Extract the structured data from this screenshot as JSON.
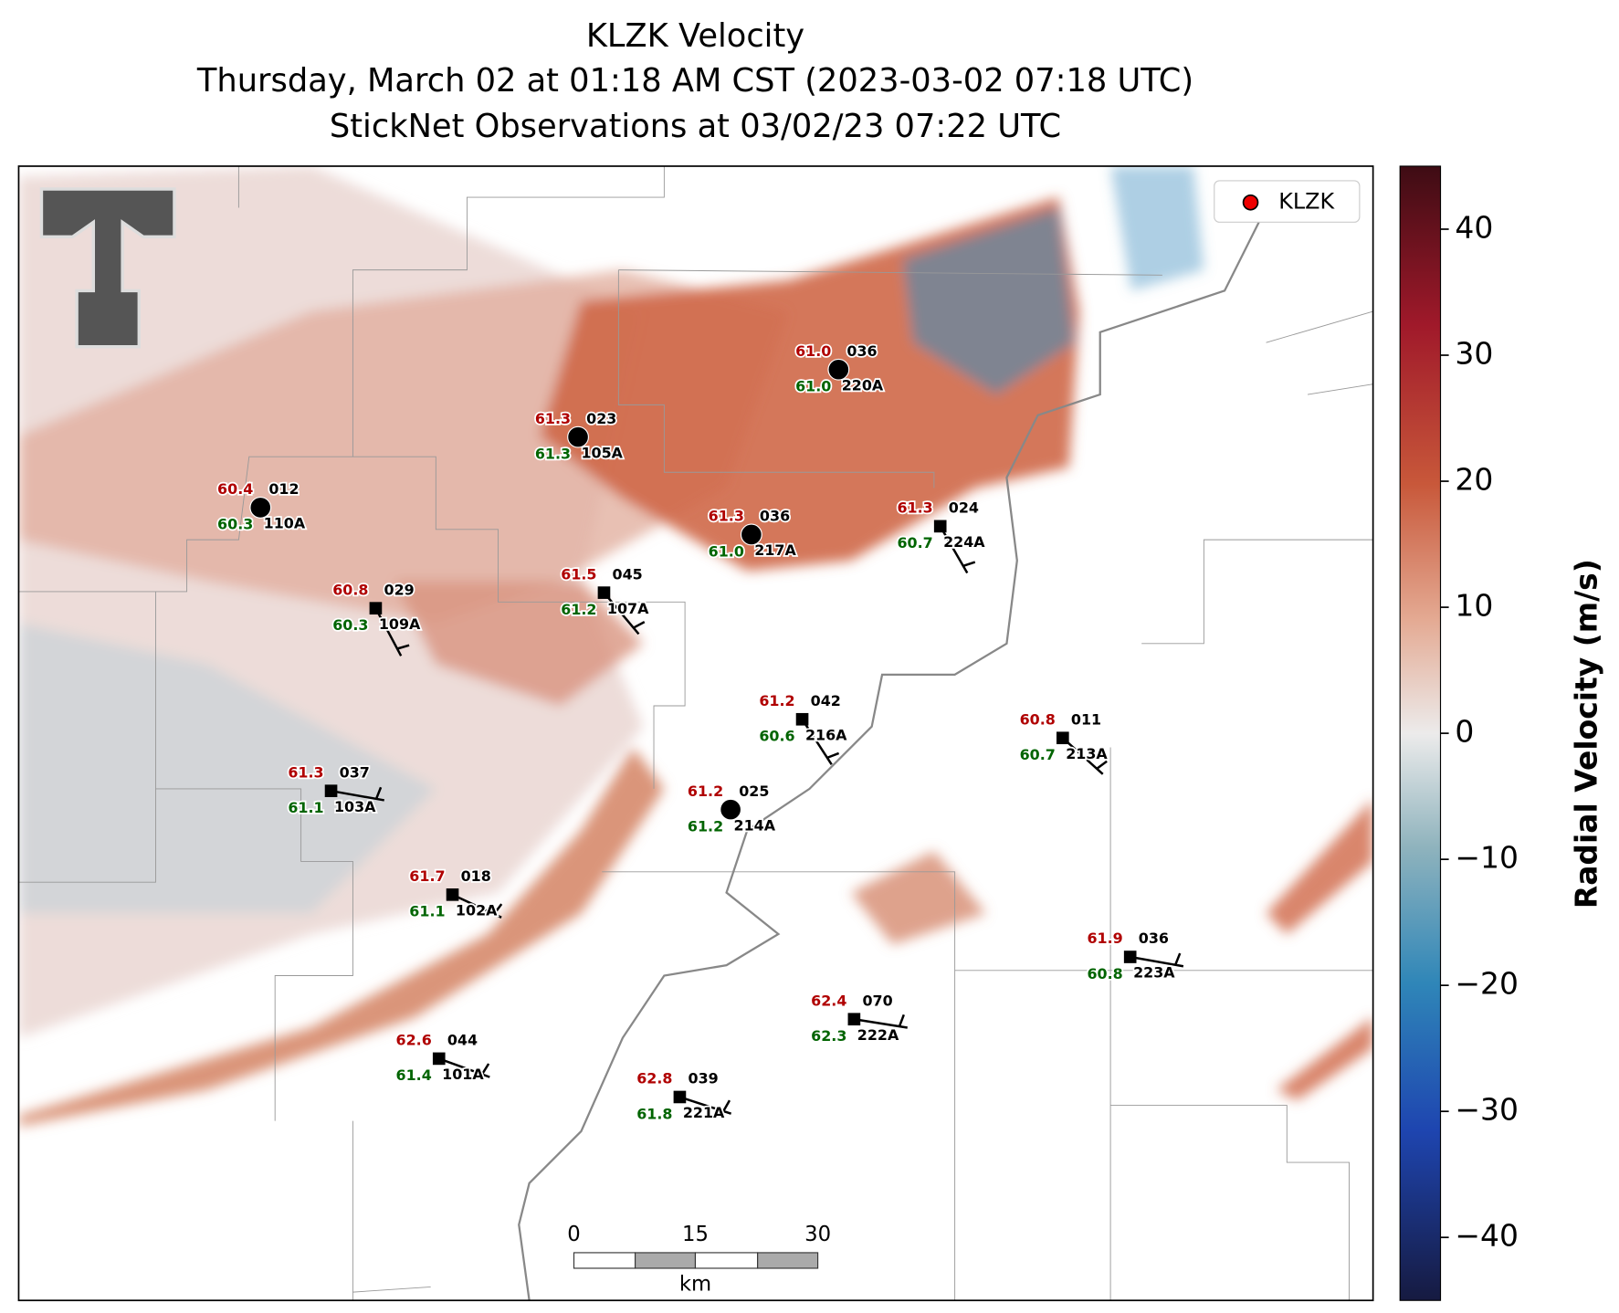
{
  "header": {
    "title": "KLZK Velocity",
    "subtitle": "Thursday, March 02 at 01:18 AM CST (2023-03-02 07:18 UTC)",
    "observations": "StickNet Observations at 03/02/23 07:22 UTC"
  },
  "legend": {
    "label": "KLZK"
  },
  "colorbar": {
    "label": "Radial Velocity (m/s)",
    "lim": [
      -45,
      45
    ],
    "ticks": [
      {
        "value": -40,
        "label": "−40"
      },
      {
        "value": -30,
        "label": "−30"
      },
      {
        "value": -20,
        "label": "−20"
      },
      {
        "value": -10,
        "label": "−10"
      },
      0,
      10,
      20,
      30,
      40
    ]
  },
  "scale_bar": {
    "ticks": [
      0,
      15,
      30
    ],
    "unit": "km"
  },
  "stations": [
    {
      "temp": "60.4",
      "code": "012",
      "dew": "60.3",
      "id": "110A"
    },
    {
      "temp": "61.3",
      "code": "023",
      "dew": "61.3",
      "id": "105A"
    },
    {
      "temp": "61.0",
      "code": "036",
      "dew": "61.0",
      "id": "220A"
    },
    {
      "temp": "61.3",
      "code": "036",
      "dew": "61.0",
      "id": "217A"
    },
    {
      "temp": "61.3",
      "code": "024",
      "dew": "60.7",
      "id": "224A"
    },
    {
      "temp": "60.8",
      "code": "029",
      "dew": "60.3",
      "id": "109A"
    },
    {
      "temp": "61.5",
      "code": "045",
      "dew": "61.2",
      "id": "107A"
    },
    {
      "temp": "61.2",
      "code": "042",
      "dew": "60.6",
      "id": "216A"
    },
    {
      "temp": "60.8",
      "code": "011",
      "dew": "60.7",
      "id": "213A"
    },
    {
      "temp": "61.3",
      "code": "037",
      "dew": "61.1",
      "id": "103A"
    },
    {
      "temp": "61.2",
      "code": "025",
      "dew": "61.2",
      "id": "214A"
    },
    {
      "temp": "61.7",
      "code": "018",
      "dew": "61.1",
      "id": "102A"
    },
    {
      "temp": "61.9",
      "code": "036",
      "dew": "60.8",
      "id": "223A"
    },
    {
      "temp": "62.4",
      "code": "070",
      "dew": "62.3",
      "id": "222A"
    },
    {
      "temp": "62.6",
      "code": "044",
      "dew": "61.4",
      "id": "101A"
    },
    {
      "temp": "62.8",
      "code": "039",
      "dew": "61.8",
      "id": "221A"
    }
  ]
}
